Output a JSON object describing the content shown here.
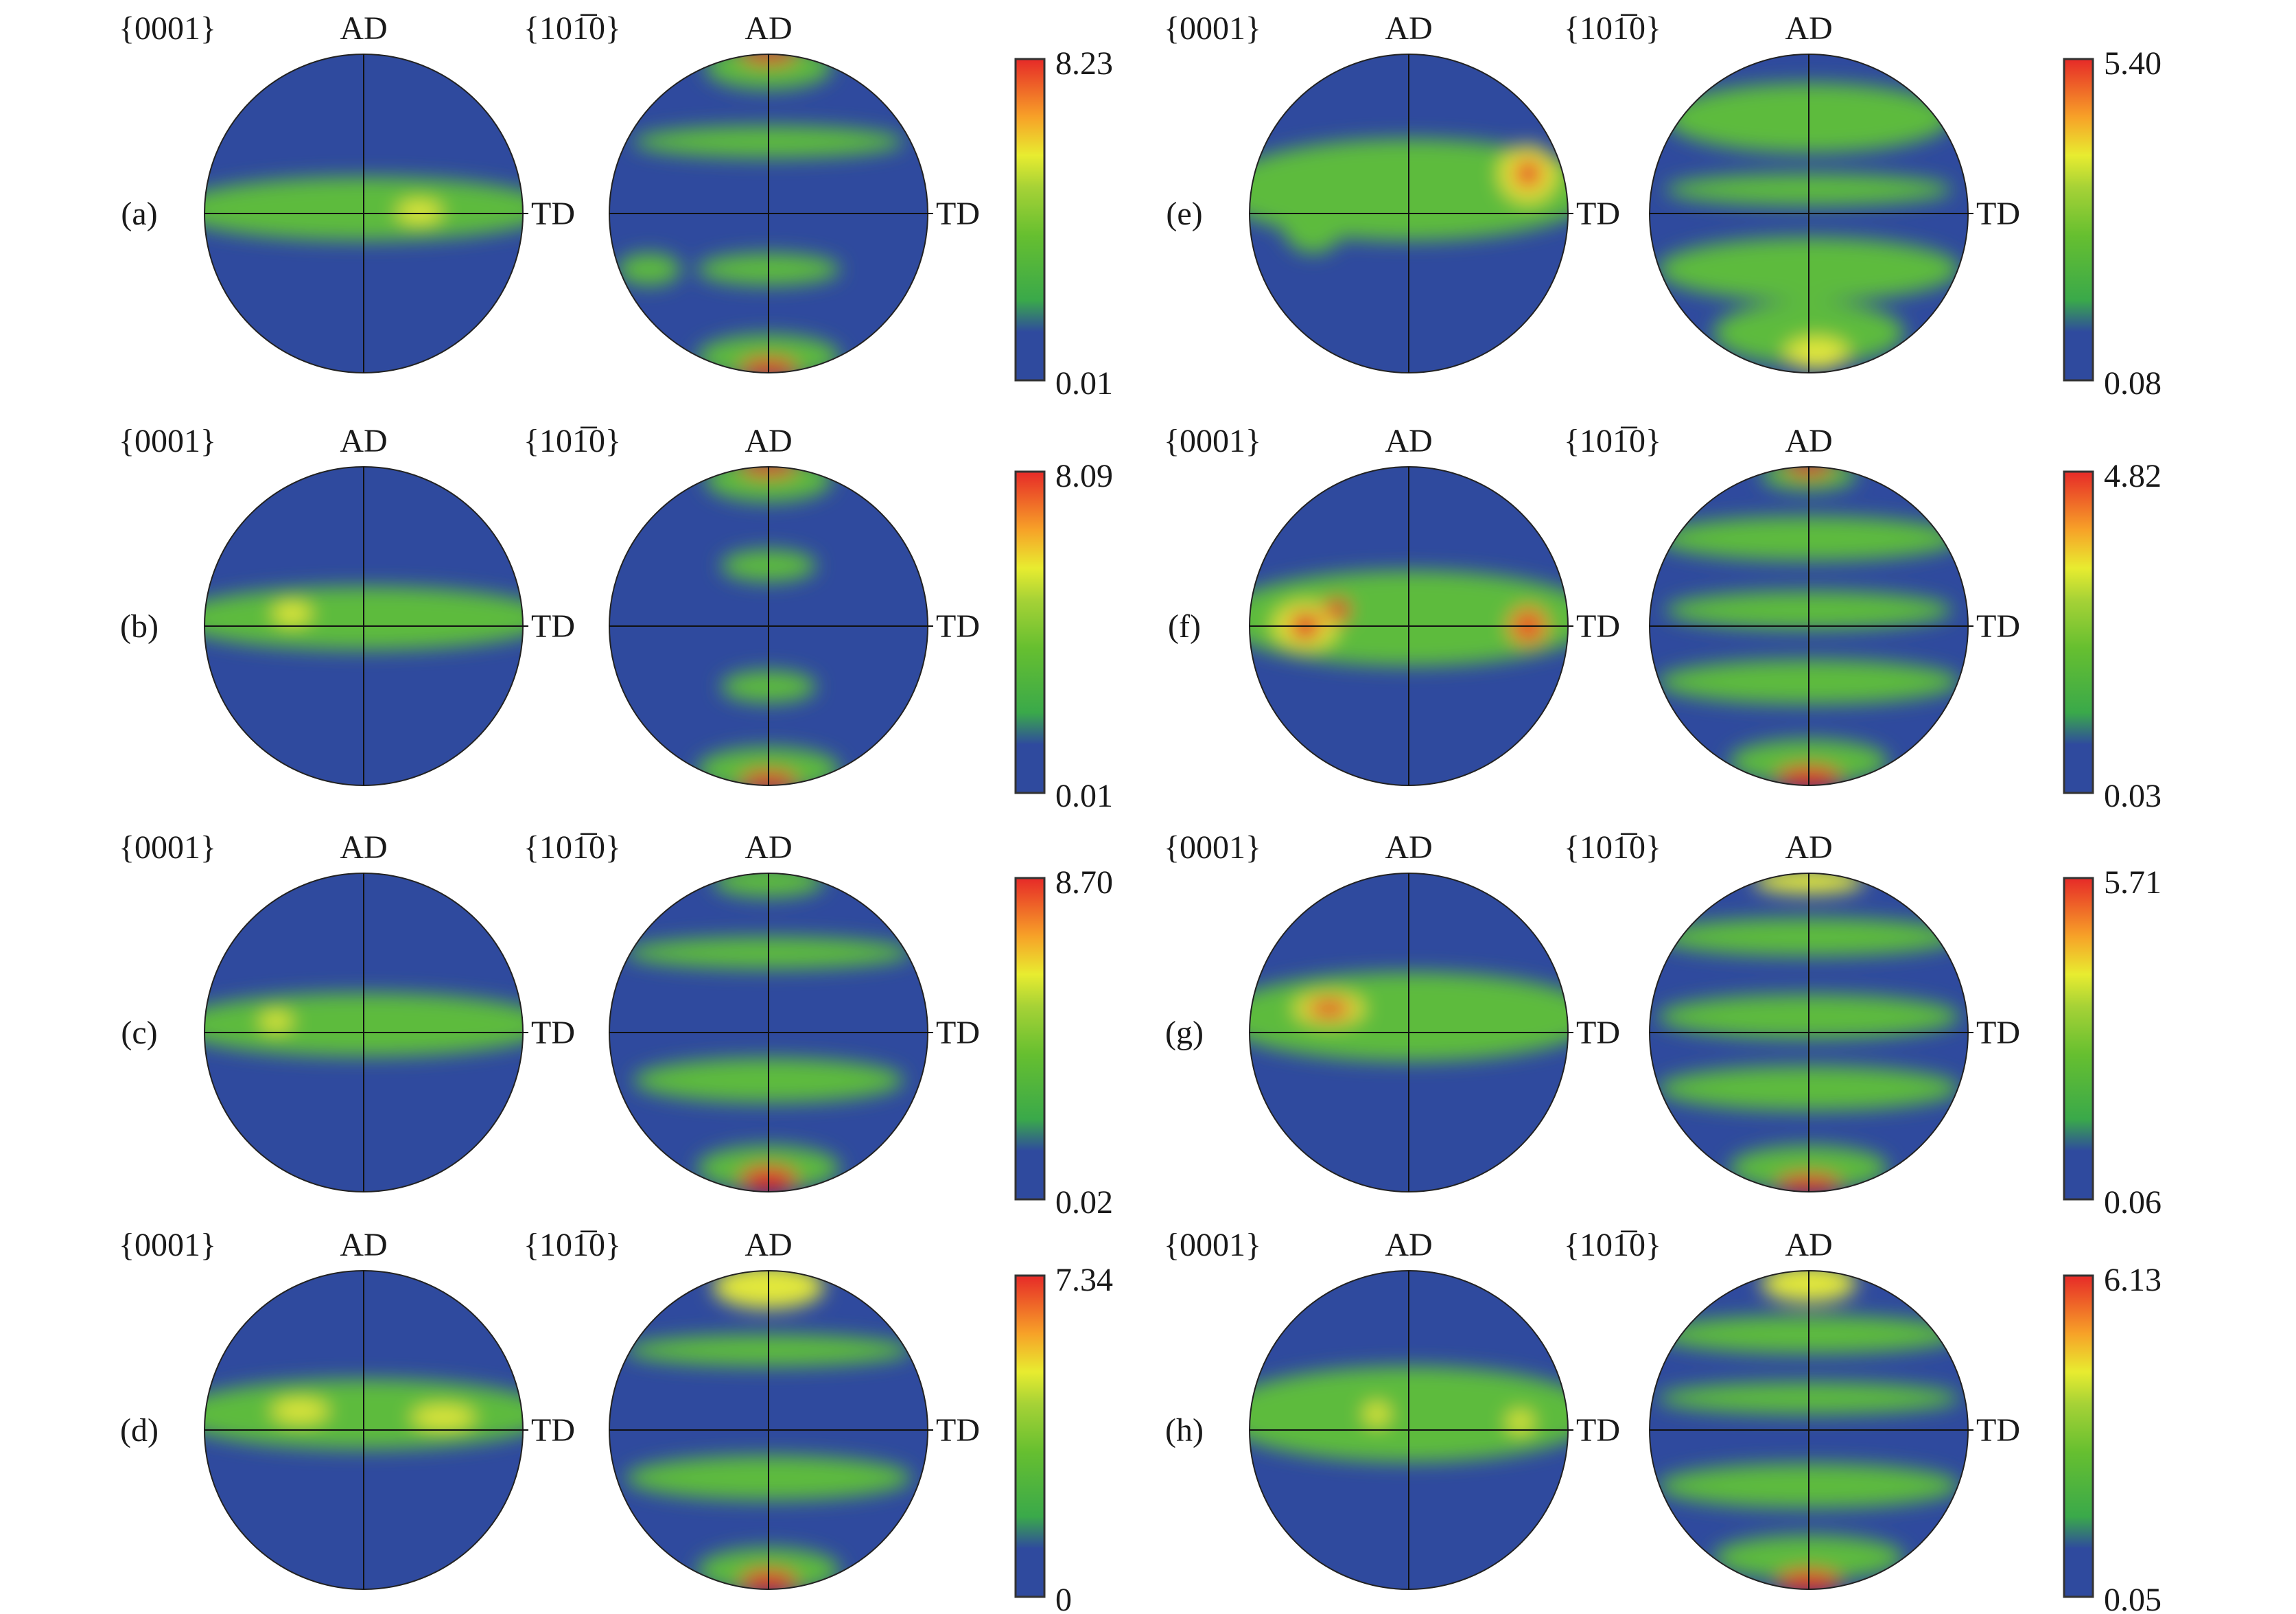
{
  "figure": {
    "colormap": {
      "low": "#2f4a9e",
      "mid": "#5dbb3c",
      "high_mid": "#e2e83a",
      "orange": "#f5a02a",
      "high": "#e02a26"
    },
    "panels": [
      {
        "label": "(a)",
        "pf1_title": "{0001}",
        "pf2_title": "{101̅0}",
        "ad": "AD",
        "td": "TD",
        "colorbar": {
          "max": "8.23",
          "min": "0.01"
        }
      },
      {
        "label": "(b)",
        "pf1_title": "{0001}",
        "pf2_title": "{101̅0}",
        "ad": "AD",
        "td": "TD",
        "colorbar": {
          "max": "8.09",
          "min": "0.01"
        }
      },
      {
        "label": "(c)",
        "pf1_title": "{0001}",
        "pf2_title": "{101̅0}",
        "ad": "AD",
        "td": "TD",
        "colorbar": {
          "max": "8.70",
          "min": "0.02"
        }
      },
      {
        "label": "(d)",
        "pf1_title": "{0001}",
        "pf2_title": "{101̅0}",
        "ad": "AD",
        "td": "TD",
        "colorbar": {
          "max": "7.34",
          "min": "0"
        }
      },
      {
        "label": "(e)",
        "pf1_title": "{0001}",
        "pf2_title": "{101̅0}",
        "ad": "AD",
        "td": "TD",
        "colorbar": {
          "max": "5.40",
          "min": "0.08"
        }
      },
      {
        "label": "(f)",
        "pf1_title": "{0001}",
        "pf2_title": "{101̅0}",
        "ad": "AD",
        "td": "TD",
        "colorbar": {
          "max": "4.82",
          "min": "0.03"
        }
      },
      {
        "label": "(g)",
        "pf1_title": "{0001}",
        "pf2_title": "{101̅0}",
        "ad": "AD",
        "td": "TD",
        "colorbar": {
          "max": "5.71",
          "min": "0.06"
        }
      },
      {
        "label": "(h)",
        "pf1_title": "{0001}",
        "pf2_title": "{101̅0}",
        "ad": "AD",
        "td": "TD",
        "colorbar": {
          "max": "6.13",
          "min": "0.05"
        }
      }
    ]
  }
}
